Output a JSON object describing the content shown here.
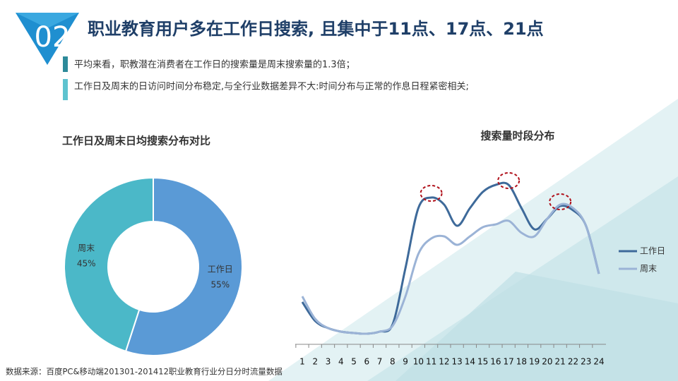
{
  "badge": "02",
  "heading": "职业教育用户多在工作日搜索, 且集中于11点、17点、21点",
  "bullets": [
    "平均来看，职教潜在消费者在工作日的搜索量是周末搜索量的1.3倍；",
    "工作日及周末的日访问时间分布稳定,与全行业数据差异不大:时间分布与正常的作息日程紧密相关;"
  ],
  "source": "数据来源：百度PC&移动端201301-201412职业教育行业分日分时流量数据",
  "chart_data": [
    {
      "type": "pie",
      "title": "工作日及周末日均搜索分布对比",
      "categories": [
        "工作日",
        "周末"
      ],
      "values": [
        55,
        45
      ],
      "value_labels": [
        "55%",
        "45%"
      ],
      "colors": [
        "#5a9ad6",
        "#4bb8c8"
      ]
    },
    {
      "type": "line",
      "title": "搜索量时段分布",
      "categories": [
        "1",
        "2",
        "3",
        "4",
        "5",
        "6",
        "7",
        "8",
        "9",
        "10",
        "11",
        "12",
        "13",
        "14",
        "15",
        "16",
        "17",
        "18",
        "19",
        "20",
        "21",
        "22",
        "23",
        "24"
      ],
      "series": [
        {
          "name": "工作日",
          "color": "#3e6a9a",
          "values": [
            60,
            33,
            23,
            18,
            16,
            15,
            18,
            28,
            108,
            193,
            208,
            198,
            168,
            193,
            216,
            226,
            226,
            193,
            163,
            178,
            196,
            190,
            168,
            100
          ]
        },
        {
          "name": "周末",
          "color": "#9bb3d6",
          "values": [
            68,
            36,
            23,
            18,
            16,
            15,
            18,
            26,
            68,
            128,
            150,
            153,
            141,
            153,
            166,
            170,
            175,
            158,
            153,
            178,
            198,
            193,
            168,
            100
          ]
        }
      ],
      "legend": "right"
    }
  ]
}
